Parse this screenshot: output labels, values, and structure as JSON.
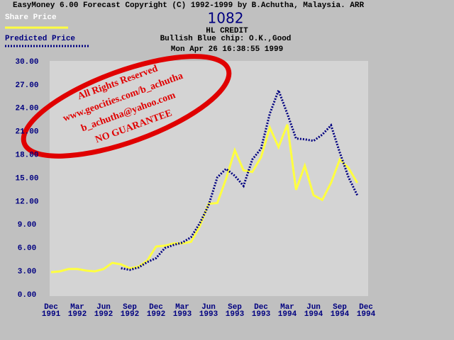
{
  "header": {
    "title": "EasyMoney 6.00 Forecast Copyright (C) 1992-1999 by B.Achutha, Malaysia. ARR",
    "code": "1082",
    "name": "HL CREDIT",
    "rating": "Bullish  Blue chip: O.K.,Good",
    "timestamp": "Mon Apr 26 16:38:55 1999"
  },
  "stamp": [
    "All Rights Reserved",
    "www.geocities.com/b_achutha",
    "b_achutha@yahoo.com",
    "NO GUARANTEE"
  ],
  "chart_data": {
    "type": "line",
    "x": [
      "1991-12",
      "1992-01",
      "1992-02",
      "1992-03",
      "1992-04",
      "1992-05",
      "1992-06",
      "1992-07",
      "1992-08",
      "1992-09",
      "1992-10",
      "1992-11",
      "1992-12",
      "1993-01",
      "1993-02",
      "1993-03",
      "1993-04",
      "1993-05",
      "1993-06",
      "1993-07",
      "1993-08",
      "1993-09",
      "1993-10",
      "1993-11",
      "1993-12",
      "1994-01",
      "1994-02",
      "1994-03",
      "1994-04",
      "1994-05",
      "1994-06",
      "1994-07",
      "1994-08",
      "1994-09",
      "1994-10",
      "1994-11"
    ],
    "series": [
      {
        "name": "Share Price",
        "color": "#ffff40",
        "style": "solid",
        "values": [
          2.9,
          3.0,
          3.3,
          3.3,
          3.1,
          3.0,
          3.3,
          4.1,
          3.9,
          3.4,
          3.6,
          4.4,
          6.2,
          6.3,
          6.6,
          6.6,
          6.8,
          8.8,
          11.7,
          11.8,
          14.9,
          18.6,
          16.0,
          15.8,
          17.7,
          21.5,
          19.0,
          21.9,
          13.5,
          16.6,
          12.8,
          12.2,
          14.4,
          17.4,
          16.3,
          14.4
        ]
      },
      {
        "name": "Predicted Price",
        "color": "#000080",
        "style": "dotted",
        "values": [
          null,
          null,
          null,
          null,
          null,
          null,
          null,
          null,
          3.4,
          3.2,
          3.5,
          4.2,
          4.7,
          6.0,
          6.4,
          6.7,
          7.4,
          9.2,
          11.5,
          15.1,
          16.2,
          15.3,
          14.0,
          17.4,
          18.8,
          23.3,
          26.3,
          23.3,
          20.1,
          20.0,
          19.8,
          20.6,
          21.8,
          18.3,
          15.1,
          12.8
        ]
      }
    ],
    "xlim": [
      "1991-12",
      "1994-12"
    ],
    "xticks": [
      {
        "value": "1991-12",
        "label": [
          "Dec",
          "1991"
        ]
      },
      {
        "value": "1992-03",
        "label": [
          "Mar",
          "1992"
        ]
      },
      {
        "value": "1992-06",
        "label": [
          "Jun",
          "1992"
        ]
      },
      {
        "value": "1992-09",
        "label": [
          "Sep",
          "1992"
        ]
      },
      {
        "value": "1992-12",
        "label": [
          "Dec",
          "1992"
        ]
      },
      {
        "value": "1993-03",
        "label": [
          "Mar",
          "1993"
        ]
      },
      {
        "value": "1993-06",
        "label": [
          "Jun",
          "1993"
        ]
      },
      {
        "value": "1993-09",
        "label": [
          "Sep",
          "1993"
        ]
      },
      {
        "value": "1993-12",
        "label": [
          "Dec",
          "1993"
        ]
      },
      {
        "value": "1994-03",
        "label": [
          "Mar",
          "1994"
        ]
      },
      {
        "value": "1994-06",
        "label": [
          "Jun",
          "1994"
        ]
      },
      {
        "value": "1994-09",
        "label": [
          "Sep",
          "1994"
        ]
      },
      {
        "value": "1994-12",
        "label": [
          "Dec",
          "1994"
        ]
      }
    ],
    "ylim": [
      0,
      30
    ],
    "yticks": [
      {
        "value": 0,
        "label": "0.00"
      },
      {
        "value": 3,
        "label": "3.00"
      },
      {
        "value": 6,
        "label": "6.00"
      },
      {
        "value": 9,
        "label": "9.00"
      },
      {
        "value": 12,
        "label": "12.00"
      },
      {
        "value": 15,
        "label": "15.00"
      },
      {
        "value": 18,
        "label": "18.00"
      },
      {
        "value": 21,
        "label": "21.00"
      },
      {
        "value": 24,
        "label": "24.00"
      },
      {
        "value": 27,
        "label": "27.00"
      },
      {
        "value": 30,
        "label": "30.00"
      }
    ],
    "grid": false
  }
}
